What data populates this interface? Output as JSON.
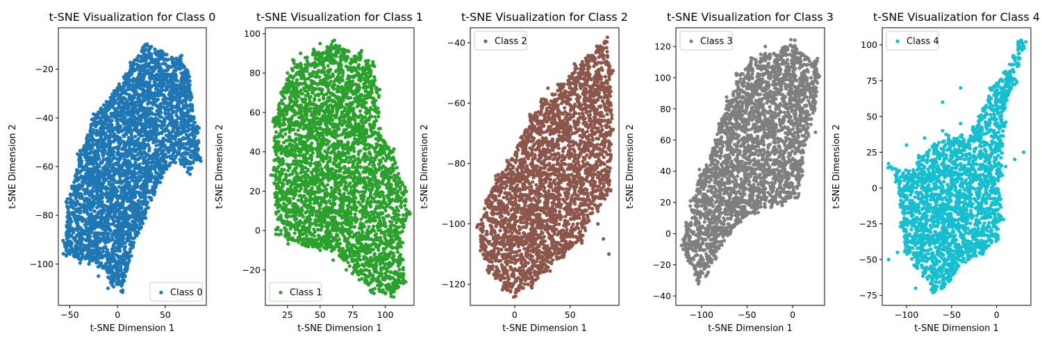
{
  "chart_data": [
    {
      "type": "scatter",
      "title": "t-SNE Visualization for Class 0",
      "xlabel": "t-SNE Dimension 1",
      "ylabel": "t-SNE Dimension 2",
      "xlim": [
        -62,
        93
      ],
      "ylim": [
        -117,
        -3
      ],
      "xticks": [
        -50,
        0,
        50
      ],
      "yticks": [
        -100,
        -80,
        -60,
        -40,
        -20
      ],
      "grid": false,
      "legend_position": "lower-right",
      "series": [
        {
          "name": "Class 0",
          "color": "#1f77b4",
          "outline": [
            [
              -55,
              -92
            ],
            [
              -52,
              -75
            ],
            [
              -40,
              -55
            ],
            [
              -25,
              -40
            ],
            [
              -5,
              -30
            ],
            [
              15,
              -18
            ],
            [
              30,
              -9
            ],
            [
              45,
              -13
            ],
            [
              65,
              -16
            ],
            [
              75,
              -22
            ],
            [
              80,
              -40
            ],
            [
              85,
              -45
            ],
            [
              85,
              -57
            ],
            [
              75,
              -62
            ],
            [
              60,
              -57
            ],
            [
              45,
              -65
            ],
            [
              30,
              -80
            ],
            [
              15,
              -95
            ],
            [
              5,
              -110
            ],
            [
              -5,
              -108
            ],
            [
              -20,
              -100
            ],
            [
              -40,
              -98
            ],
            [
              -55,
              -95
            ]
          ],
          "x": [
            -55,
            -52,
            -48,
            -45,
            -40,
            -35,
            -30,
            -25,
            -20,
            -15,
            -10,
            -5,
            0,
            5,
            10,
            15,
            20,
            25,
            30,
            35,
            40,
            45,
            50,
            55,
            60,
            65,
            70,
            75,
            80,
            85,
            -10,
            0,
            10,
            20,
            30,
            40,
            50,
            -30,
            -20,
            -10
          ],
          "y": [
            -92,
            -85,
            -75,
            -68,
            -60,
            -55,
            -50,
            -45,
            -40,
            -38,
            -35,
            -32,
            -30,
            -28,
            -25,
            -22,
            -18,
            -15,
            -12,
            -15,
            -18,
            -20,
            -22,
            -25,
            -28,
            -30,
            -35,
            -40,
            -45,
            -50,
            -80,
            -90,
            -100,
            -85,
            -70,
            -60,
            -55,
            -100,
            -105,
            -110
          ],
          "density": 3800
        }
      ]
    },
    {
      "type": "scatter",
      "title": "t-SNE Visualization for Class 1",
      "xlabel": "t-SNE Dimension 1",
      "ylabel": "t-SNE Dimension 2",
      "xlim": [
        8,
        122
      ],
      "ylim": [
        -38,
        103
      ],
      "xticks": [
        25,
        50,
        75,
        100
      ],
      "yticks": [
        -20,
        0,
        20,
        40,
        60,
        80,
        100
      ],
      "grid": false,
      "legend_position": "lower-left",
      "series": [
        {
          "name": "Class 1",
          "color": "#2ca02c",
          "outline": [
            [
              15,
              55
            ],
            [
              20,
              70
            ],
            [
              30,
              85
            ],
            [
              45,
              90
            ],
            [
              60,
              95
            ],
            [
              80,
              90
            ],
            [
              90,
              85
            ],
            [
              95,
              70
            ],
            [
              95,
              50
            ],
            [
              105,
              40
            ],
            [
              115,
              20
            ],
            [
              118,
              10
            ],
            [
              112,
              -5
            ],
            [
              115,
              -25
            ],
            [
              105,
              -33
            ],
            [
              90,
              -30
            ],
            [
              75,
              -20
            ],
            [
              60,
              -10
            ],
            [
              40,
              -8
            ],
            [
              25,
              -5
            ],
            [
              17,
              0
            ],
            [
              14,
              30
            ]
          ],
          "x": [
            15,
            20,
            25,
            30,
            35,
            40,
            45,
            50,
            55,
            60,
            65,
            70,
            75,
            80,
            85,
            90,
            95,
            100,
            105,
            110,
            115,
            20,
            30,
            40,
            50,
            60,
            70,
            80,
            90,
            100
          ],
          "y": [
            55,
            70,
            80,
            85,
            90,
            88,
            92,
            95,
            90,
            85,
            80,
            75,
            70,
            65,
            60,
            50,
            40,
            30,
            20,
            10,
            5,
            0,
            -5,
            -8,
            -10,
            -15,
            -20,
            -25,
            -30,
            -32
          ],
          "density": 3800
        }
      ]
    },
    {
      "type": "scatter",
      "title": "t-SNE Visualization for Class 2",
      "xlabel": "t-SNE Dimension 1",
      "ylabel": "t-SNE Dimension 2",
      "xlim": [
        -40,
        94
      ],
      "ylim": [
        -127,
        -35
      ],
      "xticks": [
        0,
        50
      ],
      "yticks": [
        -120,
        -100,
        -80,
        -60,
        -40
      ],
      "grid": false,
      "legend_position": "top-left",
      "series": [
        {
          "name": "Class 2",
          "color": "#8c564b",
          "outline": [
            [
              -32,
              -101
            ],
            [
              -25,
              -92
            ],
            [
              -15,
              -85
            ],
            [
              -5,
              -80
            ],
            [
              5,
              -72
            ],
            [
              15,
              -65
            ],
            [
              25,
              -60
            ],
            [
              40,
              -55
            ],
            [
              55,
              -48
            ],
            [
              65,
              -45
            ],
            [
              75,
              -42
            ],
            [
              82,
              -39
            ],
            [
              87,
              -50
            ],
            [
              88,
              -70
            ],
            [
              85,
              -90
            ],
            [
              75,
              -95
            ],
            [
              60,
              -105
            ],
            [
              45,
              -110
            ],
            [
              30,
              -115
            ],
            [
              15,
              -120
            ],
            [
              0,
              -123
            ],
            [
              -10,
              -122
            ],
            [
              -25,
              -115
            ],
            [
              -30,
              -108
            ]
          ],
          "x": [
            -30,
            -25,
            -20,
            -15,
            -10,
            -5,
            0,
            5,
            10,
            15,
            20,
            25,
            30,
            35,
            40,
            45,
            50,
            55,
            60,
            65,
            70,
            75,
            80,
            85
          ],
          "y": [
            -100,
            -110,
            -115,
            -105,
            -95,
            -90,
            -85,
            -80,
            -75,
            -70,
            -65,
            -60,
            -55,
            -60,
            -65,
            -70,
            -75,
            -80,
            -85,
            -90,
            -95,
            -100,
            -105,
            -110
          ],
          "density": 3800
        }
      ]
    },
    {
      "type": "scatter",
      "title": "t-SNE Visualization for Class 3",
      "xlabel": "t-SNE Dimension 1",
      "ylabel": "t-SNE Dimension 2",
      "xlim": [
        -128,
        35
      ],
      "ylim": [
        -46,
        132
      ],
      "xticks": [
        -100,
        -50,
        0
      ],
      "yticks": [
        -40,
        -20,
        0,
        20,
        40,
        60,
        80,
        100,
        120
      ],
      "grid": false,
      "legend_position": "top-left",
      "series": [
        {
          "name": "Class 3",
          "color": "#7f7f7f",
          "outline": [
            [
              -120,
              -5
            ],
            [
              -115,
              5
            ],
            [
              -110,
              20
            ],
            [
              -100,
              40
            ],
            [
              -90,
              50
            ],
            [
              -80,
              70
            ],
            [
              -70,
              85
            ],
            [
              -60,
              100
            ],
            [
              -45,
              110
            ],
            [
              -30,
              115
            ],
            [
              -10,
              118
            ],
            [
              0,
              122
            ],
            [
              10,
              115
            ],
            [
              25,
              110
            ],
            [
              28,
              100
            ],
            [
              25,
              80
            ],
            [
              15,
              60
            ],
            [
              10,
              40
            ],
            [
              5,
              25
            ],
            [
              -10,
              20
            ],
            [
              -25,
              18
            ],
            [
              -40,
              15
            ],
            [
              -55,
              10
            ],
            [
              -70,
              0
            ],
            [
              -85,
              -15
            ],
            [
              -95,
              -25
            ],
            [
              -105,
              -30
            ],
            [
              -115,
              -15
            ]
          ],
          "x": [
            -120,
            -115,
            -110,
            -105,
            -100,
            -95,
            -90,
            -85,
            -80,
            -75,
            -70,
            -65,
            -60,
            -55,
            -50,
            -45,
            -40,
            -35,
            -30,
            -25,
            -20,
            -15,
            -10,
            -5,
            0,
            5,
            10,
            15,
            20,
            25
          ],
          "y": [
            -10,
            0,
            10,
            20,
            30,
            40,
            50,
            60,
            70,
            75,
            80,
            85,
            90,
            95,
            100,
            105,
            110,
            115,
            120,
            115,
            110,
            105,
            100,
            95,
            90,
            85,
            80,
            75,
            70,
            65
          ],
          "density": 3800
        }
      ]
    },
    {
      "type": "scatter",
      "title": "t-SNE Visualization for Class 4",
      "xlabel": "t-SNE Dimension 1",
      "ylabel": "t-SNE Dimension 2",
      "xlim": [
        -127,
        38
      ],
      "ylim": [
        -82,
        112
      ],
      "xticks": [
        -100,
        -50,
        0
      ],
      "yticks": [
        -75,
        -50,
        -25,
        0,
        25,
        50,
        75,
        100
      ],
      "grid": false,
      "legend_position": "top-left",
      "series": [
        {
          "name": "Class 4",
          "color": "#17becf",
          "outline": [
            [
              -118,
              15
            ],
            [
              -110,
              5
            ],
            [
              -105,
              -25
            ],
            [
              -100,
              -45
            ],
            [
              -90,
              -55
            ],
            [
              -80,
              -60
            ],
            [
              -70,
              -72
            ],
            [
              -60,
              -70
            ],
            [
              -45,
              -60
            ],
            [
              -30,
              -50
            ],
            [
              -15,
              -45
            ],
            [
              0,
              -35
            ],
            [
              5,
              -20
            ],
            [
              5,
              10
            ],
            [
              8,
              45
            ],
            [
              10,
              60
            ],
            [
              20,
              75
            ],
            [
              30,
              100
            ],
            [
              25,
              102
            ],
            [
              10,
              80
            ],
            [
              -5,
              70
            ],
            [
              -15,
              55
            ],
            [
              -25,
              40
            ],
            [
              -40,
              35
            ],
            [
              -55,
              35
            ],
            [
              -70,
              30
            ],
            [
              -85,
              20
            ],
            [
              -100,
              10
            ]
          ],
          "x": [
            -120,
            -110,
            -100,
            -90,
            -80,
            -70,
            -60,
            -50,
            -40,
            -30,
            -20,
            -10,
            0,
            10,
            20,
            30,
            -100,
            -80,
            -60,
            -40,
            -20,
            0,
            -90,
            -70,
            -50,
            -30,
            -10,
            5,
            -60,
            -40
          ],
          "y": [
            -50,
            -45,
            -40,
            -35,
            -30,
            -25,
            -20,
            -15,
            -10,
            -5,
            0,
            5,
            10,
            15,
            20,
            25,
            30,
            35,
            40,
            45,
            50,
            55,
            -70,
            -60,
            -50,
            -40,
            -30,
            -20,
            60,
            70
          ],
          "density": 3800
        }
      ]
    }
  ]
}
